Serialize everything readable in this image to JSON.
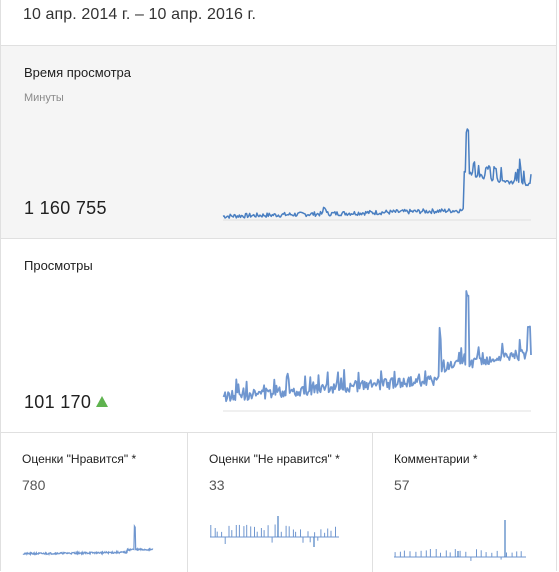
{
  "date_range": "10 апр. 2014 г. – 10 апр. 2016 г.",
  "watch_time": {
    "title": "Время просмотра",
    "unit": "Минуты",
    "value": "1 160 755"
  },
  "views": {
    "title": "Просмотры",
    "value": "101 170",
    "trend": "up"
  },
  "metrics": [
    {
      "title": "Оценки \"Нравится\" *",
      "value": "780"
    },
    {
      "title": "Оценки \"Не нравится\" *",
      "value": "33"
    },
    {
      "title": "Комментарии *",
      "value": "57"
    }
  ],
  "colors": {
    "line": "#4a7fc1",
    "trend_up": "#5fb34f"
  }
}
